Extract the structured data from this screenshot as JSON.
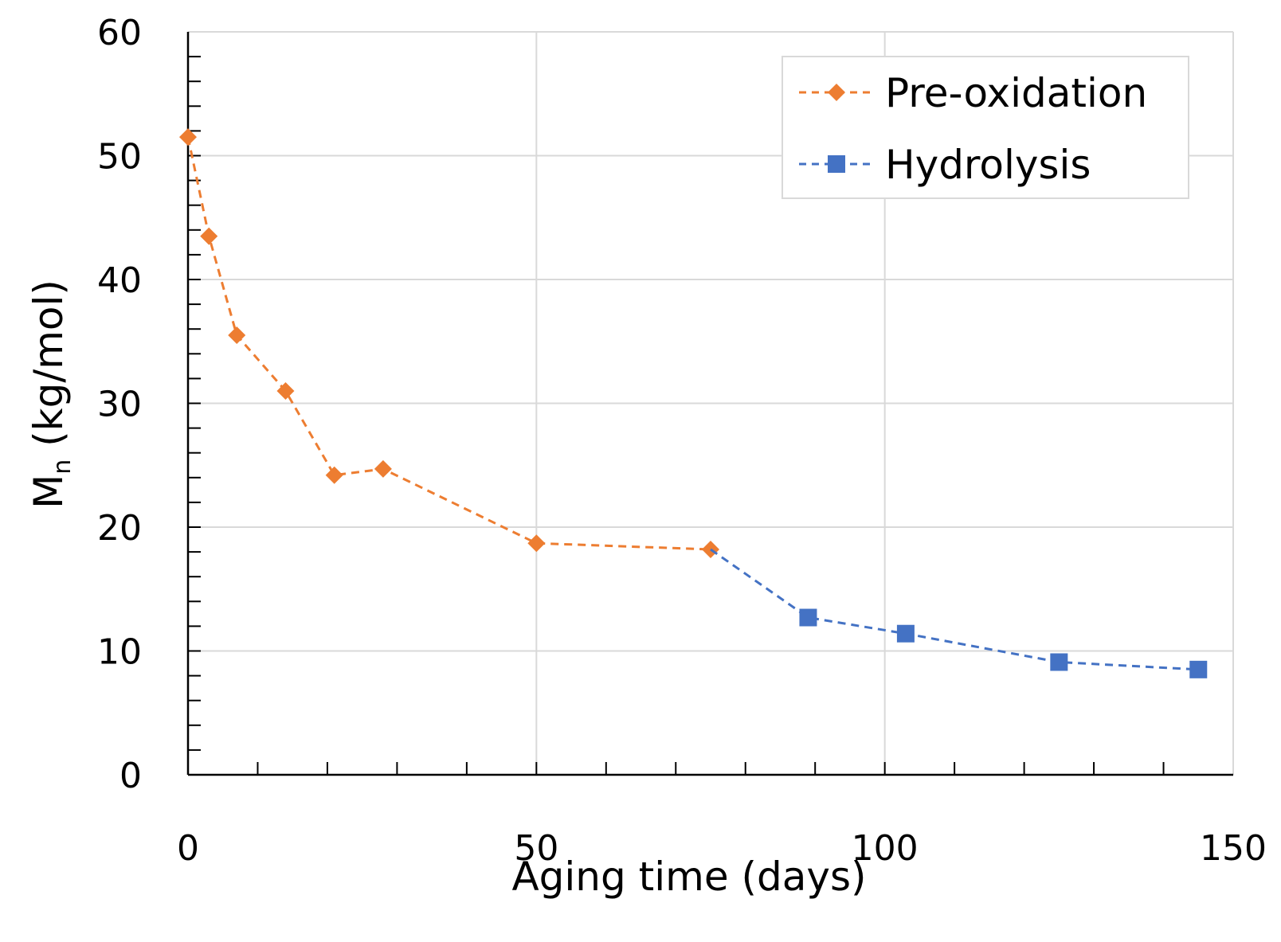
{
  "chart_data": {
    "type": "line",
    "title": "",
    "xlabel": "Aging time (days)",
    "ylabel_main": "M",
    "ylabel_sub": "n",
    "ylabel_rest": " (kg/mol)",
    "xlim": [
      0,
      150
    ],
    "ylim": [
      0,
      60
    ],
    "xticks": [
      0,
      50,
      100,
      150
    ],
    "xticks_minor_step": 10,
    "yticks": [
      0,
      10,
      20,
      30,
      40,
      50,
      60
    ],
    "yticks_minor_step": 2,
    "grid": true,
    "legend_position": "top-right",
    "series": [
      {
        "name": "Pre-oxidation",
        "color": "#ED7D31",
        "marker": "diamond",
        "line_style": "dashed",
        "x": [
          0,
          3,
          7,
          14,
          21,
          28,
          50,
          75
        ],
        "y": [
          51.5,
          43.5,
          35.5,
          31.0,
          24.2,
          24.7,
          18.7,
          18.2
        ]
      },
      {
        "name": "Hydrolysis",
        "color": "#4472C4",
        "marker": "square",
        "line_style": "dashed",
        "x": [
          75,
          89,
          103,
          125,
          145
        ],
        "y": [
          18.2,
          12.7,
          11.4,
          9.1,
          8.5
        ],
        "marker_from_index": 1
      }
    ]
  }
}
